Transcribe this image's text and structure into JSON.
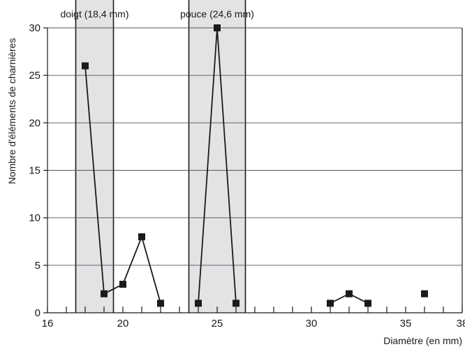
{
  "chart_data": {
    "type": "line",
    "xlabel": "Diamètre (en mm)",
    "ylabel": "Nombre d'éléments de charnières",
    "xlim": [
      16,
      38
    ],
    "ylim": [
      0,
      30
    ],
    "x_ticks": [
      16,
      20,
      25,
      30,
      35,
      38
    ],
    "y_ticks": [
      0,
      5,
      10,
      15,
      20,
      25,
      30
    ],
    "x_minor_step": 1,
    "grid": "horizontal",
    "legend": "none",
    "bands": [
      {
        "label": "doigt (18,4 mm)",
        "x_range": [
          17.5,
          19.5
        ]
      },
      {
        "label": "pouce (24,6 mm)",
        "x_range": [
          23.5,
          26.5
        ]
      }
    ],
    "series": [
      {
        "values": [
          [
            18,
            26
          ],
          [
            19,
            2
          ],
          [
            20,
            3
          ],
          [
            21,
            8
          ],
          [
            22,
            1
          ]
        ]
      },
      {
        "values": [
          [
            24,
            1
          ],
          [
            25,
            30
          ],
          [
            26,
            1
          ]
        ]
      },
      {
        "values": [
          [
            31,
            1
          ],
          [
            32,
            2
          ],
          [
            33,
            1
          ]
        ]
      },
      {
        "values": [
          [
            36,
            2
          ]
        ]
      }
    ],
    "colors": {
      "line": "#1a1a1a",
      "band_fill": "#e3e3e6",
      "band_border": "#1a1a1a",
      "grid": "#555555"
    }
  }
}
